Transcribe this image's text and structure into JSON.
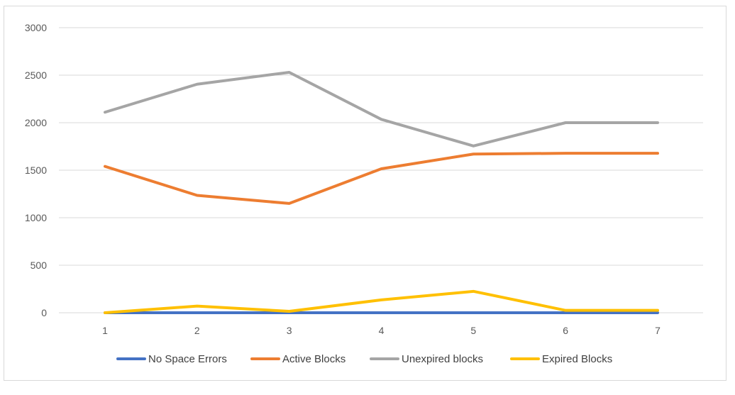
{
  "chart_data": {
    "type": "line",
    "title": "",
    "xlabel": "",
    "ylabel": "",
    "categories": [
      "1",
      "2",
      "3",
      "4",
      "5",
      "6",
      "7"
    ],
    "ylim": [
      0,
      3000
    ],
    "yticks": [
      0,
      500,
      1000,
      1500,
      2000,
      2500,
      3000
    ],
    "grid": true,
    "legend_position": "bottom",
    "series": [
      {
        "name": "No Space Errors",
        "color": "#4472C4",
        "values": [
          0,
          0,
          0,
          0,
          0,
          0,
          0
        ]
      },
      {
        "name": "Active Blocks",
        "color": "#ED7D31",
        "values": [
          1540,
          1235,
          1150,
          1515,
          1670,
          1678,
          1678
        ]
      },
      {
        "name": "Unexpired blocks",
        "color": "#A5A5A5",
        "values": [
          2110,
          2405,
          2530,
          2035,
          1755,
          2000,
          2000
        ]
      },
      {
        "name": "Expired Blocks",
        "color": "#FFC000",
        "values": [
          0,
          70,
          15,
          135,
          225,
          25,
          25
        ]
      }
    ]
  }
}
